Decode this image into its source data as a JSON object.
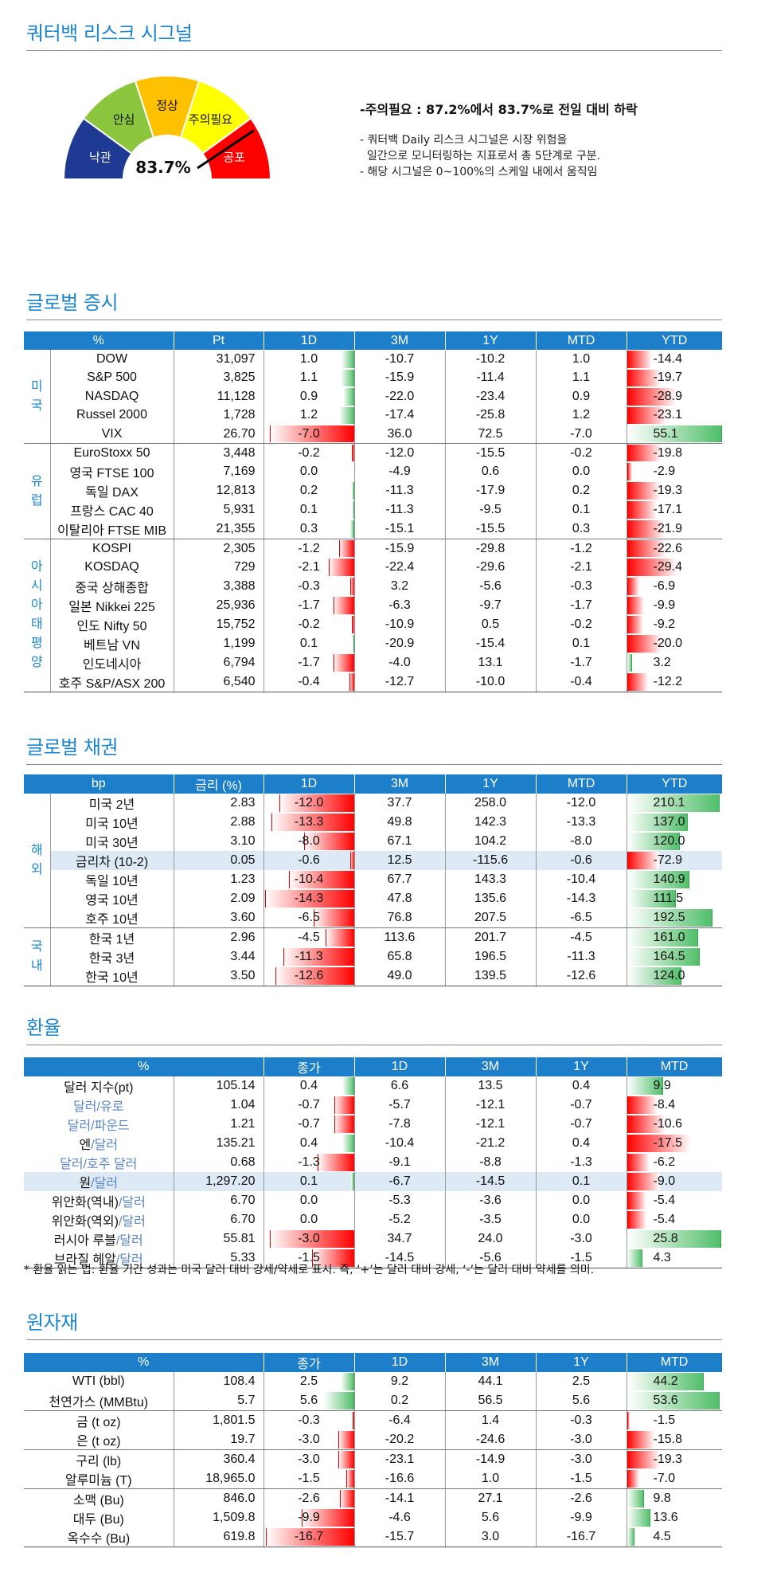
{
  "signal": {
    "title": "쿼터백 리스크 시그널",
    "value_label": "83.7%",
    "value": 83.7,
    "levels": [
      "낙관",
      "안심",
      "정상",
      "주의필요",
      "공포"
    ],
    "colors": [
      "#1f3a93",
      "#8cc63f",
      "#ffc000",
      "#ffff00",
      "#ff0000"
    ],
    "headline": "-주의필요 : 87.2%에서 83.7%로 전일 대비 하락",
    "notes": [
      "- 쿼터백 Daily 리스크 시그널은 시장 위험을",
      "  일간으로 모니터링하는 지표로서 총 5단계로 구분.",
      "- 해당 시그널은 0~100%의 스케일 내에서 움직임"
    ]
  },
  "equity": {
    "title": "글로벌 증시",
    "headers": [
      "%",
      "Pt",
      "1D",
      "3M",
      "1Y",
      "MTD",
      "YTD"
    ],
    "groups": [
      {
        "label": "미\n국",
        "rows": [
          {
            "name": "DOW",
            "pt": "31,097",
            "d1": "1.0",
            "m3": "-10.7",
            "y1": "-10.2",
            "mtd": "1.0",
            "ytd": "-14.4"
          },
          {
            "name": "S&P 500",
            "pt": "3,825",
            "d1": "1.1",
            "m3": "-15.9",
            "y1": "-11.4",
            "mtd": "1.1",
            "ytd": "-19.7"
          },
          {
            "name": "NASDAQ",
            "pt": "11,128",
            "d1": "0.9",
            "m3": "-22.0",
            "y1": "-23.4",
            "mtd": "0.9",
            "ytd": "-28.9"
          },
          {
            "name": "Russel 2000",
            "pt": "1,728",
            "d1": "1.2",
            "m3": "-17.4",
            "y1": "-25.8",
            "mtd": "1.2",
            "ytd": "-23.1"
          },
          {
            "name": "VIX",
            "pt": "26.70",
            "d1": "-7.0",
            "m3": "36.0",
            "y1": "72.5",
            "mtd": "-7.0",
            "ytd": "55.1"
          }
        ]
      },
      {
        "label": "유\n럽",
        "rows": [
          {
            "name": "EuroStoxx 50",
            "pt": "3,448",
            "d1": "-0.2",
            "m3": "-12.0",
            "y1": "-15.5",
            "mtd": "-0.2",
            "ytd": "-19.8"
          },
          {
            "name": "영국 FTSE 100",
            "pt": "7,169",
            "d1": "0.0",
            "m3": "-4.9",
            "y1": "0.6",
            "mtd": "0.0",
            "ytd": "-2.9"
          },
          {
            "name": "독일 DAX",
            "pt": "12,813",
            "d1": "0.2",
            "m3": "-11.3",
            "y1": "-17.9",
            "mtd": "0.2",
            "ytd": "-19.3"
          },
          {
            "name": "프랑스 CAC 40",
            "pt": "5,931",
            "d1": "0.1",
            "m3": "-11.3",
            "y1": "-9.5",
            "mtd": "0.1",
            "ytd": "-17.1"
          },
          {
            "name": "이탈리아 FTSE MIB",
            "pt": "21,355",
            "d1": "0.3",
            "m3": "-15.1",
            "y1": "-15.5",
            "mtd": "0.3",
            "ytd": "-21.9"
          }
        ]
      },
      {
        "label": "아\n시\n아\n태\n평\n양",
        "rows": [
          {
            "name": "KOSPI",
            "pt": "2,305",
            "d1": "-1.2",
            "m3": "-15.9",
            "y1": "-29.8",
            "mtd": "-1.2",
            "ytd": "-22.6"
          },
          {
            "name": "KOSDAQ",
            "pt": "729",
            "d1": "-2.1",
            "m3": "-22.4",
            "y1": "-29.6",
            "mtd": "-2.1",
            "ytd": "-29.4"
          },
          {
            "name": "중국 상해종합",
            "pt": "3,388",
            "d1": "-0.3",
            "m3": "3.2",
            "y1": "-5.6",
            "mtd": "-0.3",
            "ytd": "-6.9"
          },
          {
            "name": "일본 Nikkei 225",
            "pt": "25,936",
            "d1": "-1.7",
            "m3": "-6.3",
            "y1": "-9.7",
            "mtd": "-1.7",
            "ytd": "-9.9"
          },
          {
            "name": "인도 Nifty 50",
            "pt": "15,752",
            "d1": "-0.2",
            "m3": "-10.9",
            "y1": "0.5",
            "mtd": "-0.2",
            "ytd": "-9.2"
          },
          {
            "name": "베트남 VN",
            "pt": "1,199",
            "d1": "0.1",
            "m3": "-20.9",
            "y1": "-15.4",
            "mtd": "0.1",
            "ytd": "-20.0"
          },
          {
            "name": "인도네시아",
            "pt": "6,794",
            "d1": "-1.7",
            "m3": "-4.0",
            "y1": "13.1",
            "mtd": "-1.7",
            "ytd": "3.2"
          },
          {
            "name": "호주 S&P/ASX 200",
            "pt": "6,540",
            "d1": "-0.4",
            "m3": "-12.7",
            "y1": "-10.0",
            "mtd": "-0.4",
            "ytd": "-12.2"
          }
        ]
      }
    ]
  },
  "bonds": {
    "title": "글로벌 채권",
    "headers": [
      "bp",
      "금리 (%)",
      "1D",
      "3M",
      "1Y",
      "MTD",
      "YTD"
    ],
    "groups": [
      {
        "label": "해\n외",
        "rows": [
          {
            "name": "미국 2년",
            "pt": "2.83",
            "d1": "-12.0",
            "m3": "37.7",
            "y1": "258.0",
            "mtd": "-12.0",
            "ytd": "210.1"
          },
          {
            "name": "미국 10년",
            "pt": "2.88",
            "d1": "-13.3",
            "m3": "49.8",
            "y1": "142.3",
            "mtd": "-13.3",
            "ytd": "137.0"
          },
          {
            "name": "미국 30년",
            "pt": "3.10",
            "d1": "-8.0",
            "m3": "67.1",
            "y1": "104.2",
            "mtd": "-8.0",
            "ytd": "120.0"
          },
          {
            "name": "금리차 (10-2)",
            "pt": "0.05",
            "d1": "-0.6",
            "m3": "12.5",
            "y1": "-115.6",
            "mtd": "-0.6",
            "ytd": "-72.9",
            "hl": true
          },
          {
            "name": "독일 10년",
            "pt": "1.23",
            "d1": "-10.4",
            "m3": "67.7",
            "y1": "143.3",
            "mtd": "-10.4",
            "ytd": "140.9"
          },
          {
            "name": "영국 10년",
            "pt": "2.09",
            "d1": "-14.3",
            "m3": "47.8",
            "y1": "135.6",
            "mtd": "-14.3",
            "ytd": "111.5"
          },
          {
            "name": "호주 10년",
            "pt": "3.60",
            "d1": "-6.5",
            "m3": "76.8",
            "y1": "207.5",
            "mtd": "-6.5",
            "ytd": "192.5"
          }
        ]
      },
      {
        "label": "국\n내",
        "rows": [
          {
            "name": "한국 1년",
            "pt": "2.96",
            "d1": "-4.5",
            "m3": "113.6",
            "y1": "201.7",
            "mtd": "-4.5",
            "ytd": "161.0"
          },
          {
            "name": "한국 3년",
            "pt": "3.44",
            "d1": "-11.3",
            "m3": "65.8",
            "y1": "196.5",
            "mtd": "-11.3",
            "ytd": "164.5"
          },
          {
            "name": "한국 10년",
            "pt": "3.50",
            "d1": "-12.6",
            "m3": "49.0",
            "y1": "139.5",
            "mtd": "-12.6",
            "ytd": "124.0"
          }
        ]
      }
    ]
  },
  "fx": {
    "title": "환율",
    "headers": [
      "%",
      "종가",
      "1D",
      "3M",
      "1Y",
      "MTD",
      "YTD"
    ],
    "rows": [
      {
        "a": "달러 지수(pt)",
        "b": "",
        "pt": "105.14",
        "d1": "0.4",
        "m3": "6.6",
        "y1": "13.5",
        "mtd": "0.4",
        "ytd": "9.9"
      },
      {
        "a": "달러",
        "b": "/유로",
        "pt": "1.04",
        "d1": "-0.7",
        "m3": "-5.7",
        "y1": "-12.1",
        "mtd": "-0.7",
        "ytd": "-8.4"
      },
      {
        "a": "달러/파운드",
        "b": "",
        "pt": "1.21",
        "d1": "-0.7",
        "m3": "-7.8",
        "y1": "-12.1",
        "mtd": "-0.7",
        "ytd": "-10.6"
      },
      {
        "a": "엔",
        "b": "/달러",
        "pt": "135.21",
        "d1": "0.4",
        "m3": "-10.4",
        "y1": "-21.2",
        "mtd": "0.4",
        "ytd": "-17.5"
      },
      {
        "a": "달러",
        "b": "/호주 달러",
        "pt": "0.68",
        "d1": "-1.3",
        "m3": "-9.1",
        "y1": "-8.8",
        "mtd": "-1.3",
        "ytd": "-6.2"
      },
      {
        "a": "원",
        "b": "/달러",
        "pt": "1,297.20",
        "d1": "0.1",
        "m3": "-6.7",
        "y1": "-14.5",
        "mtd": "0.1",
        "ytd": "-9.0",
        "hl": true
      },
      {
        "a": "위안화(역내)",
        "b": "/달러",
        "pt": "6.70",
        "d1": "0.0",
        "m3": "-5.3",
        "y1": "-3.6",
        "mtd": "0.0",
        "ytd": "-5.4"
      },
      {
        "a": "위안화(역외)",
        "b": "/달러",
        "pt": "6.70",
        "d1": "0.0",
        "m3": "-5.2",
        "y1": "-3.5",
        "mtd": "0.0",
        "ytd": "-5.4"
      },
      {
        "a": "러시아 루블",
        "b": "/달러",
        "pt": "55.81",
        "d1": "-3.0",
        "m3": "34.7",
        "y1": "24.0",
        "mtd": "-3.0",
        "ytd": "25.8"
      },
      {
        "a": "브라질 헤알",
        "b": "/달러",
        "pt": "5.33",
        "d1": "-1.5",
        "m3": "-14.5",
        "y1": "-5.6",
        "mtd": "-1.5",
        "ytd": "4.3"
      }
    ],
    "note": "* 환율 읽는 법: 환율 기간 성과는 미국 달러 대비 강세/약세로 표시. 즉, ‘+’는 달러 대비 강세, ‘-’는 달러 대비 약세를 의미."
  },
  "commodity": {
    "title": "원자재",
    "headers": [
      "%",
      "종가",
      "1D",
      "3M",
      "1Y",
      "MTD",
      "YTD"
    ],
    "groups": [
      {
        "rows": [
          {
            "name": "WTI (bbl)",
            "pt": "108.4",
            "d1": "2.5",
            "m3": "9.2",
            "y1": "44.1",
            "mtd": "2.5",
            "ytd": "44.2"
          },
          {
            "name": "천연가스 (MMBtu)",
            "pt": "5.7",
            "d1": "5.6",
            "m3": "0.2",
            "y1": "56.5",
            "mtd": "5.6",
            "ytd": "53.6"
          }
        ]
      },
      {
        "rows": [
          {
            "name": "금 (t oz)",
            "pt": "1,801.5",
            "d1": "-0.3",
            "m3": "-6.4",
            "y1": "1.4",
            "mtd": "-0.3",
            "ytd": "-1.5"
          },
          {
            "name": "은 (t oz)",
            "pt": "19.7",
            "d1": "-3.0",
            "m3": "-20.2",
            "y1": "-24.6",
            "mtd": "-3.0",
            "ytd": "-15.8"
          }
        ]
      },
      {
        "rows": [
          {
            "name": "구리 (lb)",
            "pt": "360.4",
            "d1": "-3.0",
            "m3": "-23.1",
            "y1": "-14.9",
            "mtd": "-3.0",
            "ytd": "-19.3"
          },
          {
            "name": "알루미늄 (T)",
            "pt": "18,965.0",
            "d1": "-1.5",
            "m3": "-16.6",
            "y1": "1.0",
            "mtd": "-1.5",
            "ytd": "-7.0"
          }
        ]
      },
      {
        "rows": [
          {
            "name": "소맥 (Bu)",
            "pt": "846.0",
            "d1": "-2.6",
            "m3": "-14.1",
            "y1": "27.1",
            "mtd": "-2.6",
            "ytd": "9.8"
          },
          {
            "name": "대두 (Bu)",
            "pt": "1,509.8",
            "d1": "-9.9",
            "m3": "-4.6",
            "y1": "5.6",
            "mtd": "-9.9",
            "ytd": "13.6"
          },
          {
            "name": "옥수수 (Bu)",
            "pt": "619.8",
            "d1": "-16.7",
            "m3": "-15.7",
            "y1": "3.0",
            "mtd": "-16.7",
            "ytd": "4.5"
          }
        ]
      }
    ]
  },
  "colors": {
    "accent": "#1b86cf",
    "header": "#1d7fc9",
    "pos": "#4fbe68",
    "neg": "#ff0000",
    "highlight": "#dde9f4"
  }
}
